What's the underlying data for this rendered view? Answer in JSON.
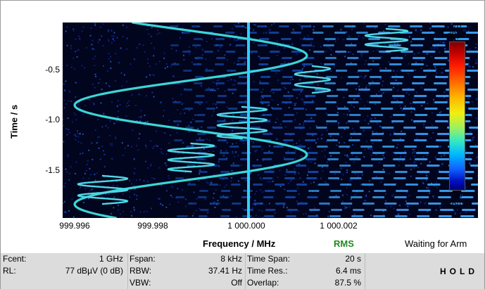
{
  "plot": {
    "ylabel": "Time / s",
    "xlabel": "Frequency / MHz",
    "yticks": [
      "-0.5",
      "-1.0",
      "-1.5"
    ],
    "xticks": [
      "999.996",
      "999.998",
      "1 000.000",
      "1 000.002"
    ],
    "colorbar": {
      "top_value": "70",
      "top_unit": "dBµV",
      "bottom_value": "-30",
      "bottom_unit": "dBµV"
    }
  },
  "status": {
    "detector": "RMS",
    "state": "Waiting for Arm",
    "detector_color": "#1f8a1f"
  },
  "info": {
    "fcent_label": "Fcent:",
    "fcent_value": "1 GHz",
    "rl_label": "RL:",
    "rl_value": "77 dBµV (0 dB)",
    "fspan_label": "Fspan:",
    "fspan_value": "8 kHz",
    "rbw_label": "RBW:",
    "rbw_value": "37.41 Hz",
    "vbw_label": "VBW:",
    "vbw_value": "Off",
    "tspan_label": "Time Span:",
    "tspan_value": "20 s",
    "tres_label": "Time Res.:",
    "tres_value": "6.4 ms",
    "overlap_label": "Overlap:",
    "overlap_value": "87.5 %",
    "hold": "HOLD"
  }
}
